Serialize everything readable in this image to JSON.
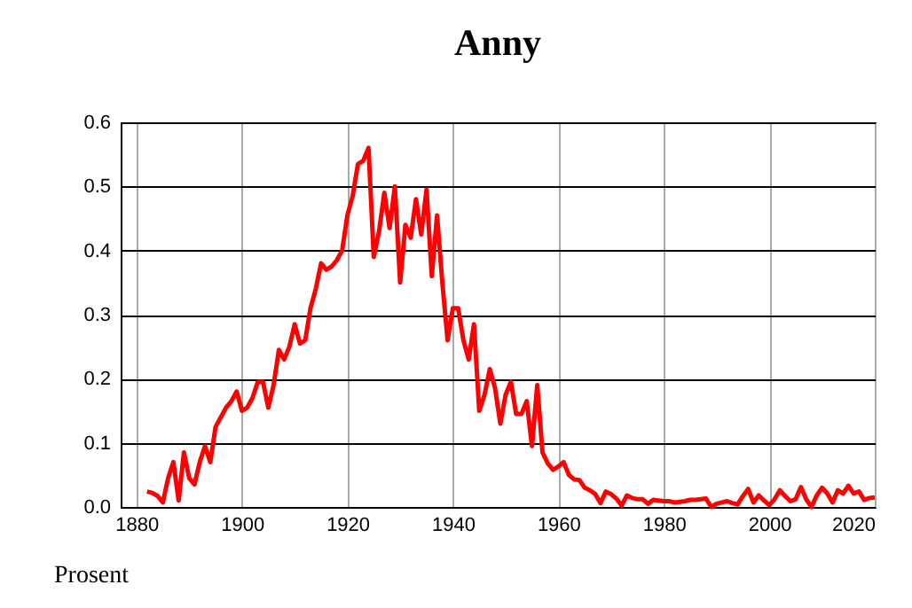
{
  "chart_data": {
    "type": "line",
    "title": "Anny",
    "ylabel": "Prosent",
    "x": [
      1882,
      1883,
      1884,
      1885,
      1886,
      1887,
      1888,
      1889,
      1890,
      1891,
      1892,
      1893,
      1894,
      1895,
      1896,
      1897,
      1898,
      1899,
      1900,
      1901,
      1902,
      1903,
      1904,
      1905,
      1906,
      1907,
      1908,
      1909,
      1910,
      1911,
      1912,
      1913,
      1914,
      1915,
      1916,
      1917,
      1918,
      1919,
      1920,
      1921,
      1922,
      1923,
      1924,
      1925,
      1926,
      1927,
      1928,
      1929,
      1930,
      1931,
      1932,
      1933,
      1934,
      1935,
      1936,
      1937,
      1938,
      1939,
      1940,
      1941,
      1942,
      1943,
      1944,
      1945,
      1946,
      1947,
      1948,
      1949,
      1950,
      1951,
      1952,
      1953,
      1954,
      1955,
      1956,
      1957,
      1958,
      1959,
      1960,
      1961,
      1962,
      1963,
      1964,
      1965,
      1966,
      1967,
      1968,
      1969,
      1970,
      1971,
      1972,
      1973,
      1974,
      1975,
      1976,
      1977,
      1978,
      1979,
      1980,
      1981,
      1982,
      1983,
      1984,
      1985,
      1986,
      1987,
      1988,
      1989,
      1990,
      1991,
      1992,
      1993,
      1994,
      1995,
      1996,
      1997,
      1998,
      1999,
      2000,
      2001,
      2002,
      2003,
      2004,
      2005,
      2006,
      2007,
      2008,
      2009,
      2010,
      2011,
      2012,
      2013,
      2014,
      2015,
      2016,
      2017,
      2018,
      2019,
      2020
    ],
    "series": [
      {
        "color": "#ff0000",
        "values": [
          0.024,
          0.022,
          0.017,
          0.007,
          0.045,
          0.07,
          0.01,
          0.085,
          0.045,
          0.035,
          0.07,
          0.095,
          0.07,
          0.125,
          0.14,
          0.155,
          0.165,
          0.18,
          0.15,
          0.155,
          0.17,
          0.195,
          0.195,
          0.155,
          0.19,
          0.245,
          0.23,
          0.25,
          0.285,
          0.255,
          0.26,
          0.31,
          0.34,
          0.38,
          0.37,
          0.375,
          0.385,
          0.4,
          0.455,
          0.485,
          0.535,
          0.54,
          0.56,
          0.39,
          0.43,
          0.49,
          0.435,
          0.5,
          0.35,
          0.44,
          0.42,
          0.48,
          0.425,
          0.495,
          0.36,
          0.455,
          0.35,
          0.26,
          0.31,
          0.31,
          0.26,
          0.23,
          0.285,
          0.15,
          0.175,
          0.215,
          0.185,
          0.13,
          0.175,
          0.195,
          0.145,
          0.145,
          0.165,
          0.095,
          0.19,
          0.085,
          0.068,
          0.058,
          0.063,
          0.07,
          0.05,
          0.043,
          0.042,
          0.03,
          0.026,
          0.02,
          0.006,
          0.024,
          0.02,
          0.013,
          0.002,
          0.018,
          0.014,
          0.012,
          0.012,
          0.005,
          0.011,
          0.01,
          0.009,
          0.009,
          0.007,
          0.008,
          0.009,
          0.011,
          0.011,
          0.012,
          0.013,
          0.0,
          0.005,
          0.007,
          0.009,
          0.006,
          0.004,
          0.017,
          0.028,
          0.007,
          0.018,
          0.01,
          0.003,
          0.012,
          0.026,
          0.017,
          0.009,
          0.012,
          0.031,
          0.012,
          0.0,
          0.018,
          0.03,
          0.021,
          0.007,
          0.026,
          0.021,
          0.033,
          0.021,
          0.024,
          0.011,
          0.014,
          0.015
        ]
      }
    ],
    "xlim": [
      1877,
      2020
    ],
    "xticks": [
      1880,
      1900,
      1920,
      1940,
      1960,
      1980,
      2000,
      2020
    ],
    "ylim": [
      0,
      0.6
    ],
    "yticks": [
      {
        "value": 0,
        "label": "0.0"
      },
      0.1,
      0.2,
      0.3,
      0.4,
      0.5,
      0.6
    ],
    "grid": true,
    "marker": "none",
    "line_style": "solid"
  }
}
